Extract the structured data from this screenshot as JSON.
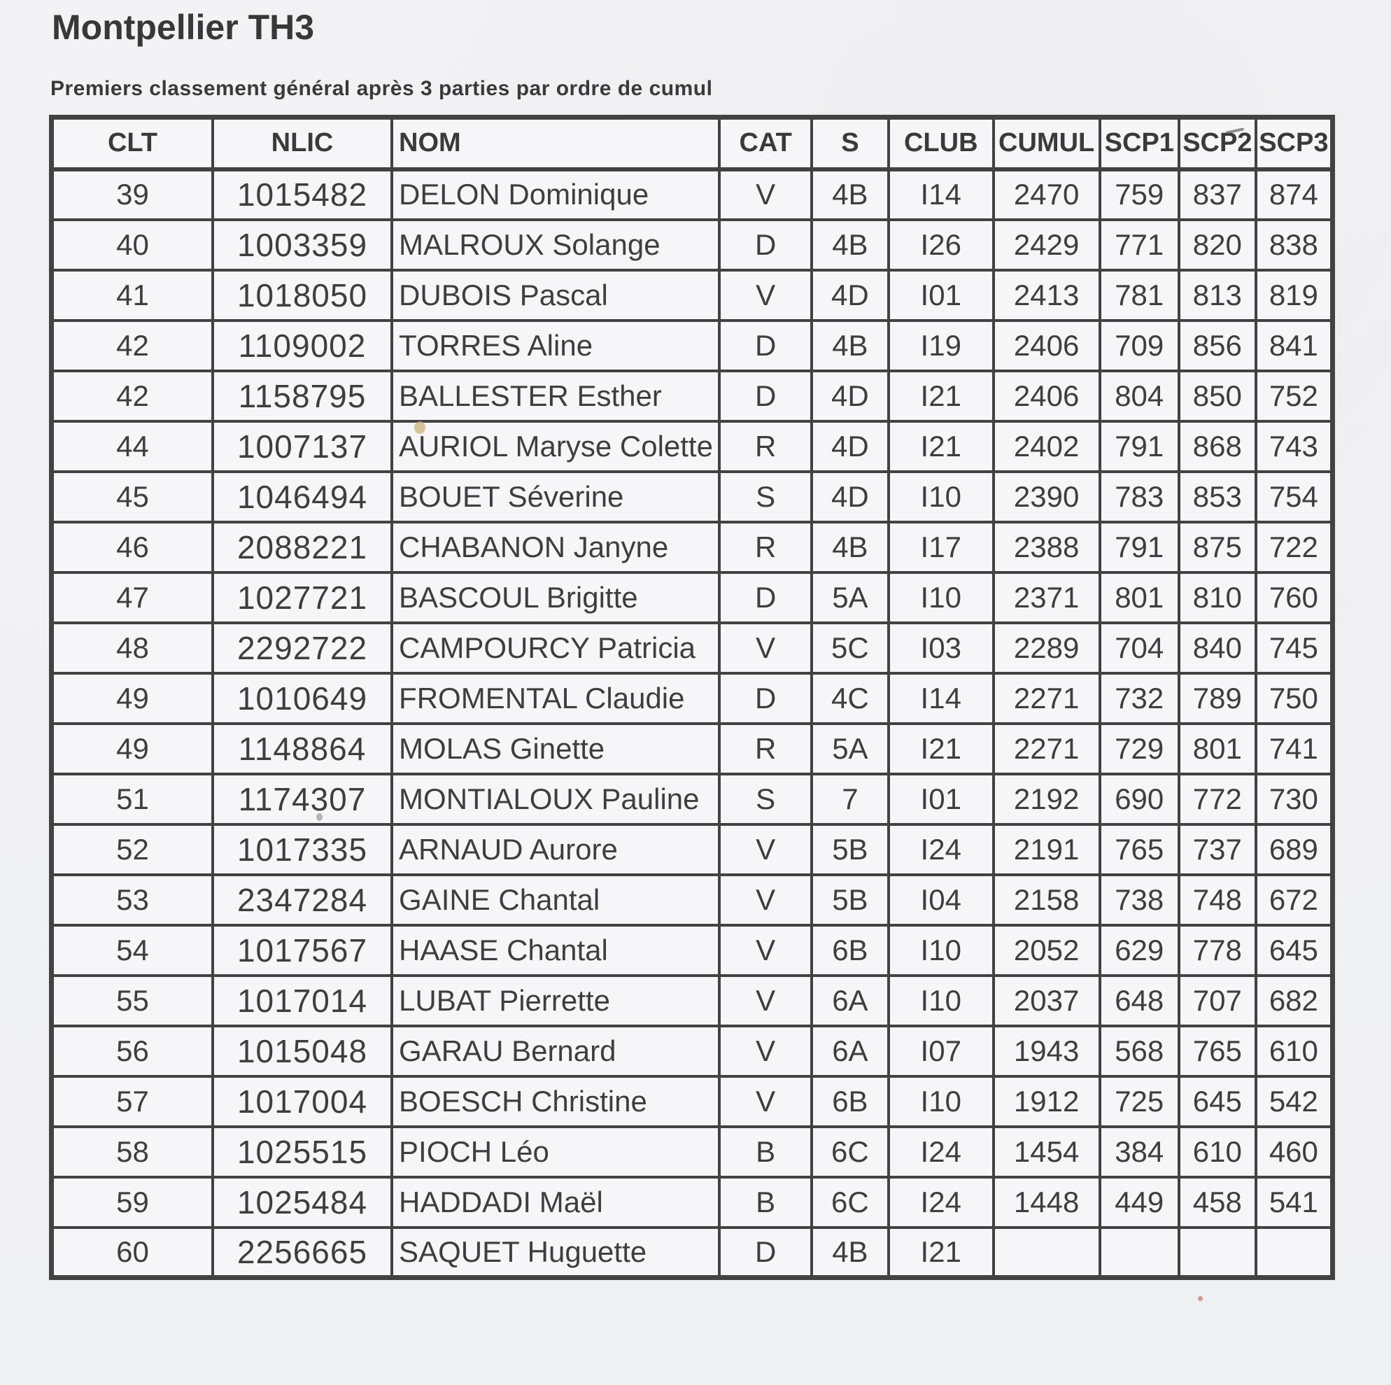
{
  "page": {
    "title": "Montpellier TH3",
    "subtitle": "Premiers classement général après 3 parties par ordre de cumul"
  },
  "table": {
    "columns": [
      "CLT",
      "NLIC",
      "NOM",
      "CAT",
      "S",
      "CLUB",
      "CUMUL",
      "SCP1",
      "SCP2",
      "SCP3"
    ],
    "rows": [
      [
        "39",
        "1015482",
        "DELON Dominique",
        "V",
        "4B",
        "I14",
        "2470",
        "759",
        "837",
        "874"
      ],
      [
        "40",
        "1003359",
        "MALROUX Solange",
        "D",
        "4B",
        "I26",
        "2429",
        "771",
        "820",
        "838"
      ],
      [
        "41",
        "1018050",
        "DUBOIS Pascal",
        "V",
        "4D",
        "I01",
        "2413",
        "781",
        "813",
        "819"
      ],
      [
        "42",
        "1109002",
        "TORRES Aline",
        "D",
        "4B",
        "I19",
        "2406",
        "709",
        "856",
        "841"
      ],
      [
        "42",
        "1158795",
        "BALLESTER Esther",
        "D",
        "4D",
        "I21",
        "2406",
        "804",
        "850",
        "752"
      ],
      [
        "44",
        "1007137",
        "AURIOL Maryse Colette",
        "R",
        "4D",
        "I21",
        "2402",
        "791",
        "868",
        "743"
      ],
      [
        "45",
        "1046494",
        "BOUET Séverine",
        "S",
        "4D",
        "I10",
        "2390",
        "783",
        "853",
        "754"
      ],
      [
        "46",
        "2088221",
        "CHABANON Janyne",
        "R",
        "4B",
        "I17",
        "2388",
        "791",
        "875",
        "722"
      ],
      [
        "47",
        "1027721",
        "BASCOUL Brigitte",
        "D",
        "5A",
        "I10",
        "2371",
        "801",
        "810",
        "760"
      ],
      [
        "48",
        "2292722",
        "CAMPOURCY Patricia",
        "V",
        "5C",
        "I03",
        "2289",
        "704",
        "840",
        "745"
      ],
      [
        "49",
        "1010649",
        "FROMENTAL Claudie",
        "D",
        "4C",
        "I14",
        "2271",
        "732",
        "789",
        "750"
      ],
      [
        "49",
        "1148864",
        "MOLAS Ginette",
        "R",
        "5A",
        "I21",
        "2271",
        "729",
        "801",
        "741"
      ],
      [
        "51",
        "1174307",
        "MONTIALOUX Pauline",
        "S",
        "7",
        "I01",
        "2192",
        "690",
        "772",
        "730"
      ],
      [
        "52",
        "1017335",
        "ARNAUD Aurore",
        "V",
        "5B",
        "I24",
        "2191",
        "765",
        "737",
        "689"
      ],
      [
        "53",
        "2347284",
        "GAINE Chantal",
        "V",
        "5B",
        "I04",
        "2158",
        "738",
        "748",
        "672"
      ],
      [
        "54",
        "1017567",
        "HAASE Chantal",
        "V",
        "6B",
        "I10",
        "2052",
        "629",
        "778",
        "645"
      ],
      [
        "55",
        "1017014",
        "LUBAT Pierrette",
        "V",
        "6A",
        "I10",
        "2037",
        "648",
        "707",
        "682"
      ],
      [
        "56",
        "1015048",
        "GARAU Bernard",
        "V",
        "6A",
        "I07",
        "1943",
        "568",
        "765",
        "610"
      ],
      [
        "57",
        "1017004",
        "BOESCH Christine",
        "V",
        "6B",
        "I10",
        "1912",
        "725",
        "645",
        "542"
      ],
      [
        "58",
        "1025515",
        "PIOCH Léo",
        "B",
        "6C",
        "I24",
        "1454",
        "384",
        "610",
        "460"
      ],
      [
        "59",
        "1025484",
        "HADDADI Maël",
        "B",
        "6C",
        "I24",
        "1448",
        "449",
        "458",
        "541"
      ],
      [
        "60",
        "2256665",
        "SAQUET Huguette",
        "D",
        "4B",
        "I21",
        "",
        "",
        "",
        ""
      ]
    ]
  },
  "colors": {
    "ink": "#3c3c3c",
    "paper": "#f2f2f4",
    "border": "#424242"
  }
}
